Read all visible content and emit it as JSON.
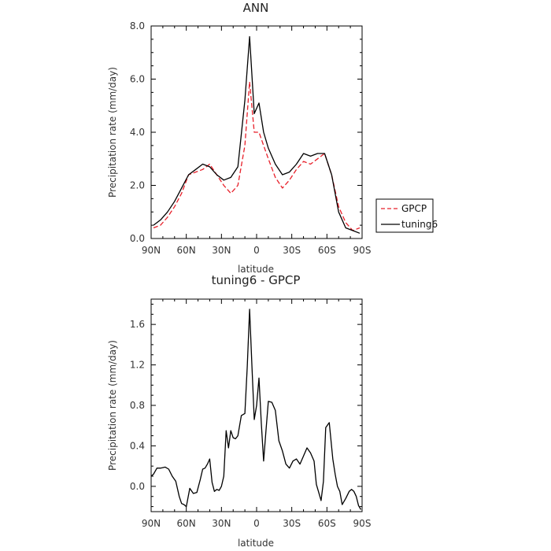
{
  "chart_data": [
    {
      "type": "line",
      "title": "ANN",
      "xlabel": "latitude",
      "ylabel": "Precipitation rate (mm/day)",
      "xlim": [
        90,
        -90
      ],
      "ylim": [
        0.0,
        8.0
      ],
      "xticks": [
        90,
        60,
        30,
        0,
        -30,
        -60,
        -90
      ],
      "xtick_labels": [
        "90N",
        "60N",
        "30N",
        "0",
        "30S",
        "60S",
        "90S"
      ],
      "yticks": [
        0,
        2,
        4,
        6,
        8
      ],
      "ytick_labels": [
        "0.0",
        "2.0",
        "4.0",
        "6.0",
        "8.0"
      ],
      "legend_position": "right",
      "x": [
        88,
        82,
        76,
        70,
        64,
        58,
        52,
        46,
        40,
        34,
        28,
        22,
        16,
        10,
        6,
        2,
        -2,
        -6,
        -10,
        -16,
        -22,
        -28,
        -34,
        -40,
        -46,
        -52,
        -58,
        -64,
        -70,
        -76,
        -82,
        -88
      ],
      "series": [
        {
          "name": "GPCP",
          "color": "#e8202a",
          "dash": "dashed",
          "values": [
            0.4,
            0.5,
            0.8,
            1.2,
            1.7,
            2.4,
            2.5,
            2.6,
            2.8,
            2.4,
            2.0,
            1.7,
            2.0,
            3.5,
            5.9,
            4.0,
            4.0,
            3.5,
            3.0,
            2.3,
            1.9,
            2.2,
            2.6,
            2.9,
            2.8,
            3.0,
            3.2,
            2.4,
            1.2,
            0.6,
            0.3,
            0.4
          ]
        },
        {
          "name": "tuning6",
          "color": "#000000",
          "dash": "solid",
          "values": [
            0.5,
            0.7,
            1.0,
            1.4,
            1.9,
            2.4,
            2.6,
            2.8,
            2.7,
            2.4,
            2.2,
            2.3,
            2.7,
            5.2,
            7.6,
            4.7,
            5.1,
            4.0,
            3.4,
            2.8,
            2.4,
            2.5,
            2.8,
            3.2,
            3.1,
            3.2,
            3.2,
            2.4,
            1.0,
            0.4,
            0.3,
            0.2
          ]
        }
      ]
    },
    {
      "type": "line",
      "title": "tuning6 - GPCP",
      "xlabel": "latitude",
      "ylabel": "Precipitation rate (mm/day)",
      "xlim": [
        90,
        -90
      ],
      "ylim": [
        -0.25,
        1.85
      ],
      "xticks": [
        90,
        60,
        30,
        0,
        -30,
        -60,
        -90
      ],
      "xtick_labels": [
        "90N",
        "60N",
        "30N",
        "0",
        "30S",
        "60S",
        "90S"
      ],
      "yticks": [
        0,
        0.4,
        0.8,
        1.2,
        1.6
      ],
      "ytick_labels": [
        "0.0",
        "0.4",
        "0.8",
        "1.2",
        "1.6"
      ],
      "x": [
        90,
        88,
        85,
        82,
        78,
        75,
        72,
        69,
        66,
        64,
        62,
        60,
        57,
        54,
        51,
        48,
        46,
        44,
        42,
        40,
        38,
        36,
        34,
        32,
        30,
        28,
        26,
        24,
        22,
        20,
        18,
        16,
        13,
        10,
        8,
        6,
        4,
        2,
        0,
        -2,
        -4,
        -6,
        -8,
        -10,
        -13,
        -16,
        -19,
        -22,
        -25,
        -28,
        -31,
        -34,
        -37,
        -40,
        -43,
        -46,
        -49,
        -51,
        -53,
        -55,
        -57,
        -59,
        -62,
        -65,
        -67,
        -69,
        -71,
        -73,
        -76,
        -79,
        -81,
        -83,
        -85,
        -87,
        -89
      ],
      "series": [
        {
          "name": "tuning6 - GPCP",
          "color": "#000000",
          "dash": "solid",
          "values": [
            0.1,
            0.12,
            0.18,
            0.18,
            0.19,
            0.17,
            0.1,
            0.05,
            -0.1,
            -0.17,
            -0.18,
            -0.2,
            -0.02,
            -0.07,
            -0.06,
            0.07,
            0.17,
            0.18,
            0.22,
            0.27,
            0.04,
            -0.05,
            -0.03,
            -0.04,
            0.0,
            0.1,
            0.55,
            0.38,
            0.55,
            0.48,
            0.47,
            0.5,
            0.7,
            0.72,
            1.18,
            1.75,
            1.2,
            0.66,
            0.8,
            1.07,
            0.62,
            0.25,
            0.55,
            0.84,
            0.83,
            0.75,
            0.45,
            0.35,
            0.22,
            0.18,
            0.25,
            0.27,
            0.22,
            0.3,
            0.38,
            0.33,
            0.25,
            0.02,
            -0.06,
            -0.14,
            0.05,
            0.58,
            0.63,
            0.27,
            0.12,
            0.0,
            -0.05,
            -0.18,
            -0.12,
            -0.05,
            -0.03,
            -0.05,
            -0.1,
            -0.19,
            -0.23
          ]
        }
      ]
    }
  ]
}
